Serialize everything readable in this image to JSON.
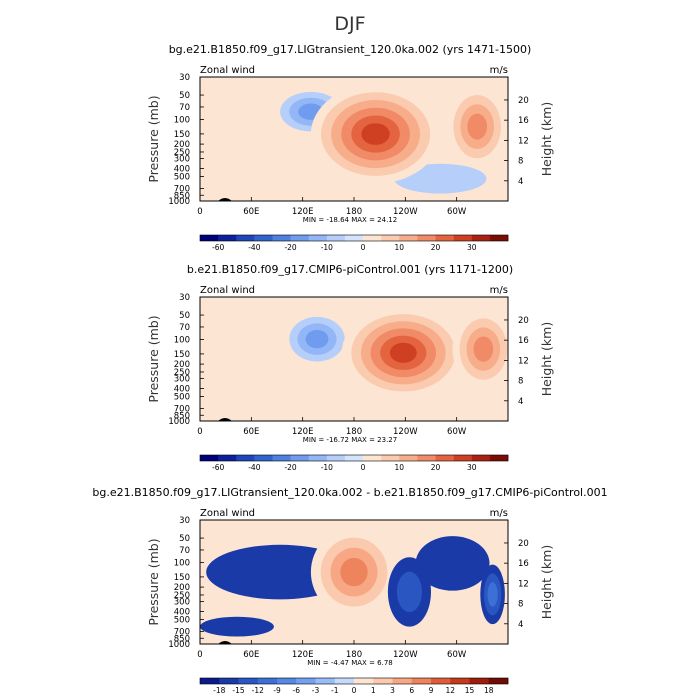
{
  "page_title": "DJF",
  "chart_data": [
    {
      "type": "heatmap",
      "title": "bg.e21.B1850.f09_g17.LIGtransient_120.0ka.002 (yrs 1471-1500)",
      "variable_label": "Zonal wind",
      "units": "m/s",
      "ylabel": "Pressure (mb)",
      "y2label": "Height (km)",
      "x_ticks": [
        "0",
        "60E",
        "120E",
        "180",
        "120W",
        "60W"
      ],
      "y_ticks": [
        "30",
        "50",
        "70",
        "100",
        "150",
        "200",
        "250",
        "300",
        "400",
        "500",
        "700",
        "850",
        "1000"
      ],
      "y2_ticks": [
        "20",
        "16",
        "12",
        "8",
        "4"
      ],
      "stats": "MIN = -18.64   MAX =  24.12",
      "min": -18.64,
      "max": 24.12,
      "colorbar_labels": [
        "-60",
        "-40",
        "-20",
        "-10",
        "0",
        "10",
        "20",
        "30"
      ],
      "colorbar_colors": [
        "#00007a",
        "#0c1f9c",
        "#1e46b8",
        "#2f64cf",
        "#4d80e0",
        "#6f9cee",
        "#93b6f6",
        "#b6cffa",
        "#d4e4fc",
        "#fde5d4",
        "#fbcbb0",
        "#f7ac8a",
        "#f18a66",
        "#e56440",
        "#cf4022",
        "#a92211",
        "#7a0e07"
      ]
    },
    {
      "type": "heatmap",
      "title": "b.e21.B1850.f09_g17.CMIP6-piControl.001 (yrs 1171-1200)",
      "variable_label": "Zonal wind",
      "units": "m/s",
      "ylabel": "Pressure (mb)",
      "y2label": "Height (km)",
      "x_ticks": [
        "0",
        "60E",
        "120E",
        "180",
        "120W",
        "60W"
      ],
      "y_ticks": [
        "30",
        "50",
        "70",
        "100",
        "150",
        "200",
        "250",
        "300",
        "400",
        "500",
        "700",
        "850",
        "1000"
      ],
      "y2_ticks": [
        "20",
        "16",
        "12",
        "8",
        "4"
      ],
      "stats": "MIN = -16.72   MAX =  23.27",
      "min": -16.72,
      "max": 23.27,
      "colorbar_labels": [
        "-60",
        "-40",
        "-20",
        "-10",
        "0",
        "10",
        "20",
        "30"
      ],
      "colorbar_colors": [
        "#00007a",
        "#0c1f9c",
        "#1e46b8",
        "#2f64cf",
        "#4d80e0",
        "#6f9cee",
        "#93b6f6",
        "#b6cffa",
        "#d4e4fc",
        "#fde5d4",
        "#fbcbb0",
        "#f7ac8a",
        "#f18a66",
        "#e56440",
        "#cf4022",
        "#a92211",
        "#7a0e07"
      ]
    },
    {
      "type": "heatmap",
      "title": "bg.e21.B1850.f09_g17.LIGtransient_120.0ka.002 - b.e21.B1850.f09_g17.CMIP6-piControl.001",
      "variable_label": "Zonal wind",
      "units": "m/s",
      "ylabel": "Pressure (mb)",
      "y2label": "Height (km)",
      "x_ticks": [
        "0",
        "60E",
        "120E",
        "180",
        "120W",
        "60W"
      ],
      "y_ticks": [
        "30",
        "50",
        "70",
        "100",
        "150",
        "200",
        "250",
        "300",
        "400",
        "500",
        "700",
        "850",
        "1000"
      ],
      "y2_ticks": [
        "20",
        "16",
        "12",
        "8",
        "4"
      ],
      "stats": "MIN = -4.47   MAX =  6.78",
      "min": -4.47,
      "max": 6.78,
      "colorbar_labels": [
        "-18",
        "-15",
        "-12",
        "-9",
        "-6",
        "-3",
        "-1",
        "0",
        "1",
        "3",
        "6",
        "9",
        "12",
        "15",
        "18"
      ],
      "colorbar_colors": [
        "#0a1a8c",
        "#1a3aa8",
        "#2a56c2",
        "#3d70d6",
        "#5688e4",
        "#74a0ef",
        "#97bcf7",
        "#c6dafb",
        "#fde5d4",
        "#fbc9ad",
        "#f7a784",
        "#ee845e",
        "#de5c39",
        "#c33a1c",
        "#9c1d0c",
        "#6e0c05"
      ]
    }
  ]
}
